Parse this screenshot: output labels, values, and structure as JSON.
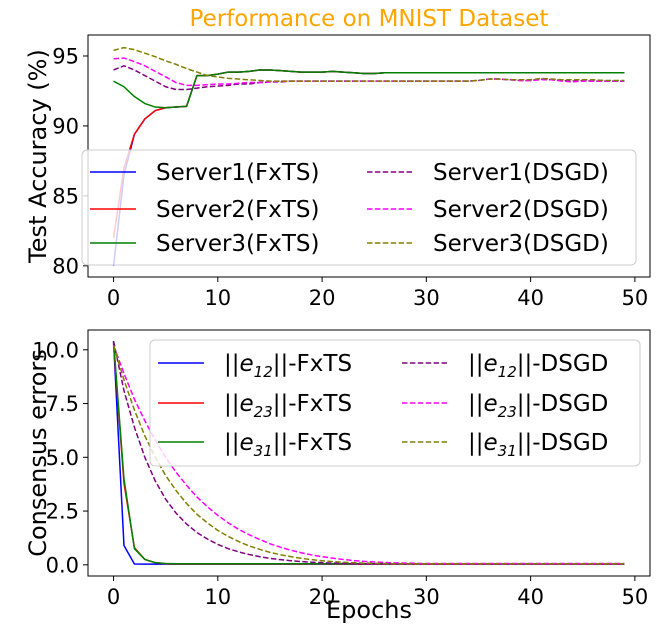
{
  "chart_data": [
    {
      "type": "line",
      "title": "Performance on MNIST Dataset",
      "title_color": "#ffa500",
      "xlabel": "",
      "ylabel": "Test Accuracy (%)",
      "xlim": [
        -2.45,
        51.45
      ],
      "ylim": [
        79.2,
        96.5
      ],
      "xticks": [
        0,
        10,
        20,
        30,
        40,
        50
      ],
      "xtick_labels": [
        "0",
        "10",
        "20",
        "30",
        "40",
        "50"
      ],
      "yticks": [
        80,
        85,
        90,
        95
      ],
      "ytick_labels": [
        "80",
        "85",
        "90",
        "95"
      ],
      "grid": false,
      "legend": "lower-center",
      "x": [
        0,
        1,
        2,
        3,
        4,
        5,
        6,
        7,
        8,
        9,
        10,
        11,
        12,
        13,
        14,
        15,
        16,
        17,
        18,
        19,
        20,
        21,
        22,
        23,
        24,
        25,
        26,
        27,
        28,
        29,
        30,
        31,
        32,
        33,
        34,
        35,
        36,
        37,
        38,
        39,
        40,
        41,
        42,
        43,
        44,
        45,
        46,
        47,
        48,
        49
      ],
      "series": [
        {
          "name": "Server1(FxTS)",
          "color": "#0000ff",
          "dash": "solid",
          "values": [
            80.0,
            86.5,
            89.4,
            90.5,
            91.1,
            91.3,
            91.35,
            91.4,
            93.6,
            93.6,
            93.7,
            93.85,
            93.85,
            93.9,
            94.0,
            94.0,
            93.95,
            93.9,
            93.85,
            93.85,
            93.85,
            93.9,
            93.85,
            93.8,
            93.75,
            93.75,
            93.8,
            93.8,
            93.8,
            93.8,
            93.8,
            93.8,
            93.8,
            93.8,
            93.8,
            93.8,
            93.8,
            93.8,
            93.8,
            93.8,
            93.8,
            93.8,
            93.8,
            93.8,
            93.8,
            93.8,
            93.8,
            93.8,
            93.8,
            93.8
          ]
        },
        {
          "name": "Server2(FxTS)",
          "color": "#ff0000",
          "dash": "solid",
          "values": [
            82.0,
            87.0,
            89.4,
            90.5,
            91.1,
            91.3,
            91.35,
            91.4,
            93.6,
            93.6,
            93.7,
            93.85,
            93.85,
            93.9,
            94.0,
            94.0,
            93.95,
            93.9,
            93.85,
            93.85,
            93.85,
            93.9,
            93.85,
            93.8,
            93.75,
            93.75,
            93.8,
            93.8,
            93.8,
            93.8,
            93.8,
            93.8,
            93.8,
            93.8,
            93.8,
            93.8,
            93.8,
            93.8,
            93.8,
            93.8,
            93.8,
            93.8,
            93.8,
            93.8,
            93.8,
            93.8,
            93.8,
            93.8,
            93.8,
            93.8
          ]
        },
        {
          "name": "Server3(FxTS)",
          "color": "#008000",
          "dash": "solid",
          "values": [
            93.2,
            92.8,
            92.1,
            91.6,
            91.35,
            91.3,
            91.35,
            91.4,
            93.6,
            93.6,
            93.7,
            93.85,
            93.85,
            93.9,
            94.0,
            94.0,
            93.95,
            93.9,
            93.85,
            93.85,
            93.85,
            93.9,
            93.85,
            93.8,
            93.75,
            93.75,
            93.8,
            93.8,
            93.8,
            93.8,
            93.8,
            93.8,
            93.8,
            93.8,
            93.8,
            93.8,
            93.8,
            93.8,
            93.8,
            93.8,
            93.8,
            93.8,
            93.8,
            93.8,
            93.8,
            93.8,
            93.8,
            93.8,
            93.8,
            93.8
          ]
        },
        {
          "name": "Server1(DSGD)",
          "color": "#800080",
          "dash": "dashed",
          "values": [
            94.0,
            94.3,
            94.0,
            93.6,
            93.2,
            92.8,
            92.6,
            92.6,
            92.7,
            92.8,
            92.85,
            92.9,
            93.0,
            93.0,
            93.1,
            93.15,
            93.15,
            93.2,
            93.2,
            93.2,
            93.2,
            93.2,
            93.2,
            93.2,
            93.2,
            93.2,
            93.2,
            93.2,
            93.2,
            93.2,
            93.2,
            93.2,
            93.2,
            93.2,
            93.2,
            93.25,
            93.35,
            93.35,
            93.3,
            93.25,
            93.25,
            93.35,
            93.3,
            93.25,
            93.2,
            93.25,
            93.2,
            93.2,
            93.2,
            93.2
          ]
        },
        {
          "name": "Server2(DSGD)",
          "color": "#ff00ff",
          "dash": "dashed",
          "values": [
            94.8,
            94.85,
            94.6,
            94.3,
            93.9,
            93.5,
            93.1,
            92.9,
            92.9,
            92.95,
            93.0,
            93.0,
            93.05,
            93.1,
            93.1,
            93.15,
            93.2,
            93.2,
            93.2,
            93.2,
            93.2,
            93.2,
            93.2,
            93.2,
            93.2,
            93.2,
            93.2,
            93.2,
            93.2,
            93.2,
            93.2,
            93.2,
            93.2,
            93.2,
            93.2,
            93.25,
            93.35,
            93.35,
            93.3,
            93.25,
            93.25,
            93.3,
            93.3,
            93.2,
            93.15,
            93.2,
            93.2,
            93.2,
            93.2,
            93.2
          ]
        },
        {
          "name": "Server3(DSGD)",
          "color": "#808000",
          "dash": "dashed",
          "values": [
            95.4,
            95.6,
            95.45,
            95.2,
            94.95,
            94.65,
            94.4,
            94.1,
            93.85,
            93.6,
            93.5,
            93.4,
            93.35,
            93.3,
            93.25,
            93.2,
            93.2,
            93.2,
            93.2,
            93.2,
            93.2,
            93.2,
            93.2,
            93.2,
            93.2,
            93.2,
            93.2,
            93.2,
            93.2,
            93.2,
            93.2,
            93.2,
            93.2,
            93.2,
            93.2,
            93.25,
            93.35,
            93.35,
            93.3,
            93.3,
            93.3,
            93.4,
            93.35,
            93.3,
            93.3,
            93.3,
            93.3,
            93.25,
            93.25,
            93.25
          ]
        }
      ]
    },
    {
      "type": "line",
      "title": "",
      "xlabel": "Epochs",
      "ylabel": "Consensus errors",
      "xlim": [
        -2.45,
        51.45
      ],
      "ylim": [
        -0.52,
        10.92
      ],
      "xticks": [
        0,
        10,
        20,
        30,
        40,
        50
      ],
      "xtick_labels": [
        "0",
        "10",
        "20",
        "30",
        "40",
        "50"
      ],
      "yticks": [
        0,
        2.5,
        5,
        7.5,
        10
      ],
      "ytick_labels": [
        "0.0",
        "2.5",
        "5.0",
        "7.5",
        "10.0"
      ],
      "grid": false,
      "legend": "top-right",
      "x": [
        0,
        1,
        2,
        3,
        4,
        5,
        6,
        7,
        8,
        9,
        10,
        11,
        12,
        13,
        14,
        15,
        16,
        17,
        18,
        19,
        20,
        21,
        22,
        23,
        24,
        25,
        26,
        27,
        28,
        29,
        30,
        31,
        32,
        33,
        34,
        35,
        36,
        37,
        38,
        39,
        40,
        41,
        42,
        43,
        44,
        45,
        46,
        47,
        48,
        49
      ],
      "series": [
        {
          "name": "||e12||-FxTS",
          "label_base": "||e",
          "label_sub": "12",
          "label_tail": "||-FxTS",
          "color": "#0000ff",
          "dash": "solid",
          "values": [
            10.4,
            0.9,
            0.04,
            0.03,
            0.03,
            0.03,
            0.03,
            0.03,
            0.03,
            0.03,
            0.03,
            0.03,
            0.03,
            0.03,
            0.03,
            0.03,
            0.03,
            0.03,
            0.03,
            0.03,
            0.03,
            0.03,
            0.03,
            0.03,
            0.03,
            0.03,
            0.03,
            0.03,
            0.03,
            0.03,
            0.03,
            0.03,
            0.03,
            0.03,
            0.03,
            0.03,
            0.03,
            0.03,
            0.03,
            0.03,
            0.03,
            0.03,
            0.03,
            0.03,
            0.03,
            0.03,
            0.03,
            0.03,
            0.03,
            0.03
          ]
        },
        {
          "name": "||e23||-FxTS",
          "label_base": "||e",
          "label_sub": "23",
          "label_tail": "||-FxTS",
          "color": "#ff0000",
          "dash": "solid",
          "values": [
            10.3,
            3.8,
            0.8,
            0.25,
            0.1,
            0.05,
            0.04,
            0.04,
            0.04,
            0.04,
            0.04,
            0.04,
            0.04,
            0.04,
            0.04,
            0.04,
            0.04,
            0.04,
            0.04,
            0.04,
            0.04,
            0.04,
            0.04,
            0.04,
            0.04,
            0.04,
            0.04,
            0.04,
            0.04,
            0.04,
            0.04,
            0.04,
            0.04,
            0.04,
            0.04,
            0.04,
            0.04,
            0.04,
            0.04,
            0.04,
            0.04,
            0.04,
            0.04,
            0.04,
            0.04,
            0.04,
            0.04,
            0.04,
            0.04,
            0.04
          ]
        },
        {
          "name": "||e31||-FxTS",
          "label_base": "||e",
          "label_sub": "31",
          "label_tail": "||-FxTS",
          "color": "#008000",
          "dash": "solid",
          "values": [
            10.4,
            4.0,
            0.75,
            0.25,
            0.1,
            0.06,
            0.05,
            0.05,
            0.05,
            0.05,
            0.05,
            0.05,
            0.05,
            0.05,
            0.05,
            0.05,
            0.05,
            0.05,
            0.05,
            0.05,
            0.05,
            0.05,
            0.05,
            0.05,
            0.05,
            0.05,
            0.05,
            0.05,
            0.05,
            0.05,
            0.05,
            0.05,
            0.05,
            0.05,
            0.05,
            0.05,
            0.05,
            0.05,
            0.05,
            0.05,
            0.05,
            0.05,
            0.05,
            0.05,
            0.05,
            0.05,
            0.05,
            0.05,
            0.05,
            0.05
          ]
        },
        {
          "name": "||e12||-DSGD",
          "label_base": "||e",
          "label_sub": "12",
          "label_tail": "||-DSGD",
          "color": "#800080",
          "dash": "dashed",
          "values": [
            10.4,
            8.1,
            6.4,
            5.0,
            3.9,
            3.05,
            2.4,
            1.9,
            1.5,
            1.2,
            0.95,
            0.75,
            0.6,
            0.48,
            0.38,
            0.3,
            0.24,
            0.19,
            0.15,
            0.12,
            0.1,
            0.08,
            0.07,
            0.06,
            0.05,
            0.05,
            0.05,
            0.05,
            0.05,
            0.05,
            0.05,
            0.05,
            0.05,
            0.05,
            0.05,
            0.05,
            0.05,
            0.05,
            0.05,
            0.05,
            0.05,
            0.05,
            0.05,
            0.05,
            0.05,
            0.05,
            0.05,
            0.05,
            0.05,
            0.05
          ]
        },
        {
          "name": "||e23||-DSGD",
          "label_base": "||e",
          "label_sub": "23",
          "label_tail": "||-DSGD",
          "color": "#ff00ff",
          "dash": "dashed",
          "values": [
            10.2,
            8.9,
            7.7,
            6.7,
            5.8,
            5.0,
            4.3,
            3.7,
            3.15,
            2.7,
            2.3,
            1.95,
            1.65,
            1.4,
            1.18,
            0.98,
            0.82,
            0.68,
            0.56,
            0.46,
            0.38,
            0.31,
            0.25,
            0.2,
            0.16,
            0.13,
            0.11,
            0.09,
            0.08,
            0.07,
            0.06,
            0.06,
            0.06,
            0.06,
            0.06,
            0.06,
            0.06,
            0.06,
            0.06,
            0.06,
            0.06,
            0.06,
            0.06,
            0.06,
            0.06,
            0.06,
            0.06,
            0.06,
            0.06,
            0.06
          ]
        },
        {
          "name": "||e31||-DSGD",
          "label_base": "||e",
          "label_sub": "31",
          "label_tail": "||-DSGD",
          "color": "#808000",
          "dash": "dashed",
          "values": [
            10.2,
            8.6,
            7.2,
            6.0,
            5.0,
            4.15,
            3.45,
            2.85,
            2.35,
            1.95,
            1.6,
            1.32,
            1.08,
            0.88,
            0.72,
            0.58,
            0.47,
            0.38,
            0.3,
            0.24,
            0.19,
            0.15,
            0.12,
            0.1,
            0.08,
            0.07,
            0.06,
            0.05,
            0.05,
            0.05,
            0.05,
            0.05,
            0.05,
            0.05,
            0.05,
            0.05,
            0.05,
            0.05,
            0.05,
            0.05,
            0.05,
            0.05,
            0.05,
            0.05,
            0.05,
            0.05,
            0.05,
            0.05,
            0.05,
            0.05
          ]
        }
      ]
    }
  ]
}
